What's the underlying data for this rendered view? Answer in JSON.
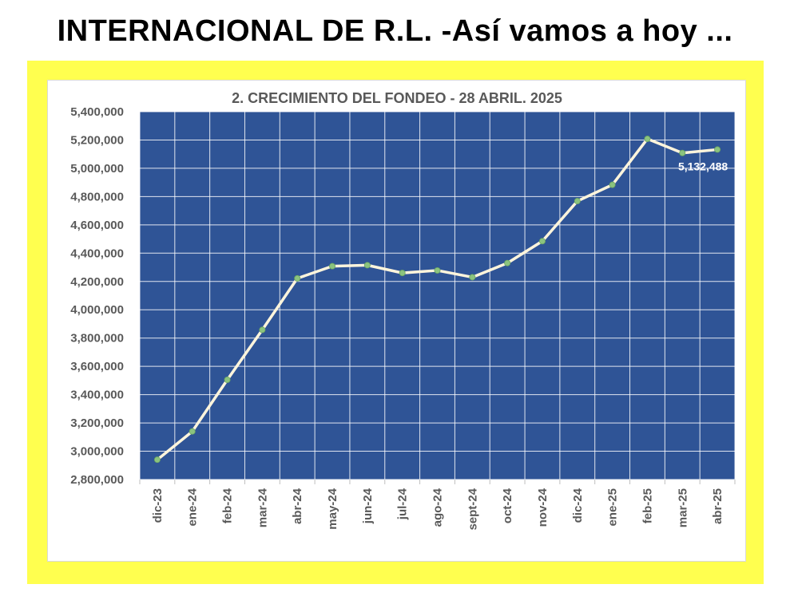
{
  "header": {
    "title": "INTERNACIONAL DE R.L. -Así vamos a hoy ..."
  },
  "colors": {
    "frame": "#FFFF4F",
    "plot_background": "#2F5496",
    "line": "#FFF5DC",
    "marker": "#8BC37F",
    "text": "#595959"
  },
  "chart_data": {
    "type": "line",
    "title": "2. CRECIMIENTO DEL FONDEO - 28 ABRIL. 2025",
    "xlabel": "",
    "ylabel": "",
    "categories": [
      "dic-23",
      "ene-24",
      "feb-24",
      "mar-24",
      "abr-24",
      "may-24",
      "jun-24",
      "jul-24",
      "ago-24",
      "sept-24",
      "oct-24",
      "nov-24",
      "dic-24",
      "ene-25",
      "feb-25",
      "mar-25",
      "abr-25"
    ],
    "series": [
      {
        "values": [
          2940000,
          3140000,
          3505000,
          3858000,
          4222000,
          4308000,
          4315000,
          4260000,
          4278000,
          4230000,
          4330000,
          4485000,
          4768000,
          4883000,
          5208000,
          5108000,
          5132488
        ]
      }
    ],
    "ylim": [
      2800000,
      5400000
    ],
    "yticks": [
      2800000,
      3000000,
      3200000,
      3400000,
      3600000,
      3800000,
      4000000,
      4200000,
      4400000,
      4600000,
      4800000,
      5000000,
      5200000,
      5400000
    ],
    "ytick_labels": [
      "2,800,000",
      "3,000,000",
      "3,200,000",
      "3,400,000",
      "3,600,000",
      "3,800,000",
      "4,000,000",
      "4,200,000",
      "4,400,000",
      "4,600,000",
      "4,800,000",
      "5,000,000",
      "5,200,000",
      "5,400,000"
    ],
    "data_labels": [
      {
        "index": 16,
        "text": "5,132,488"
      }
    ],
    "grid": true,
    "legend": "none"
  }
}
